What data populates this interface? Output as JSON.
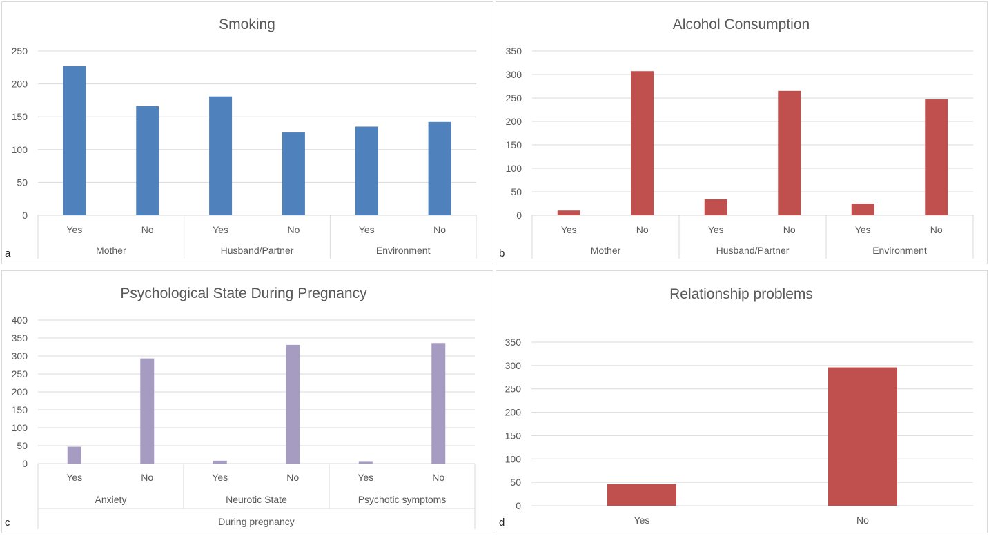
{
  "chart_data": [
    {
      "type": "bar",
      "panel_label": "a",
      "title": "Smoking",
      "categories": [
        "Yes",
        "No",
        "Yes",
        "No",
        "Yes",
        "No"
      ],
      "groups": [
        "Mother",
        "Husband/Partner",
        "Environment"
      ],
      "values": [
        227,
        166,
        181,
        126,
        135,
        142
      ],
      "ylim": [
        0,
        250
      ],
      "yticks": [
        0,
        50,
        100,
        150,
        200,
        250
      ],
      "color": "#4f81bd",
      "grid": true
    },
    {
      "type": "bar",
      "panel_label": "b",
      "title": "Alcohol Consumption",
      "categories": [
        "Yes",
        "No",
        "Yes",
        "No",
        "Yes",
        "No"
      ],
      "groups": [
        "Mother",
        "Husband/Partner",
        "Environment"
      ],
      "values": [
        10,
        307,
        34,
        265,
        25,
        247
      ],
      "ylim": [
        0,
        350
      ],
      "yticks": [
        0,
        50,
        100,
        150,
        200,
        250,
        300,
        350
      ],
      "color": "#c0504d",
      "grid": true
    },
    {
      "type": "bar",
      "panel_label": "c",
      "title": "Psychological State During Pregnancy",
      "categories": [
        "Yes",
        "No",
        "Yes",
        "No",
        "Yes",
        "No"
      ],
      "groups": [
        "Anxiety",
        "Neurotic State",
        "Psychotic symptoms"
      ],
      "supergroup": "During pregnancy",
      "values": [
        47,
        293,
        8,
        331,
        5,
        336
      ],
      "ylim": [
        0,
        400
      ],
      "yticks": [
        0,
        50,
        100,
        150,
        200,
        250,
        300,
        350,
        400
      ],
      "color": "#a69bc0",
      "grid": true
    },
    {
      "type": "bar",
      "panel_label": "d",
      "title": "Relationship problems",
      "categories": [
        "Yes",
        "No"
      ],
      "values": [
        46,
        296
      ],
      "ylim": [
        0,
        350
      ],
      "yticks": [
        0,
        50,
        100,
        150,
        200,
        250,
        300,
        350
      ],
      "color": "#c0504d",
      "grid": true
    }
  ]
}
